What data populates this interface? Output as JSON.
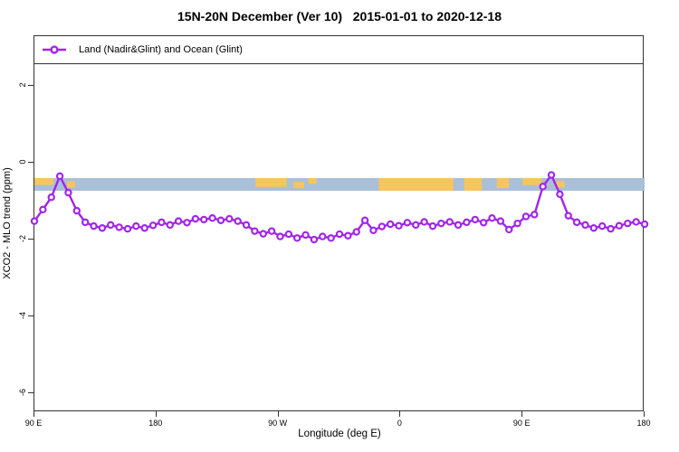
{
  "title": "15N-20N December (Ver 10)   2015-01-01 to 2020-12-18",
  "legend": {
    "label": "Land (Nadir&Glint) and Ocean (Glint)",
    "marker": "open-circle-on-line",
    "color": "#A125E8"
  },
  "axes": {
    "x": {
      "label": "Longitude (deg E)",
      "ticks": [
        {
          "deg": 0,
          "label": "90 E"
        },
        {
          "deg": 90,
          "label": "180"
        },
        {
          "deg": 180,
          "label": "90 W"
        },
        {
          "deg": 270,
          "label": "0"
        },
        {
          "deg": 360,
          "label": "90 E"
        },
        {
          "deg": 450,
          "label": "180"
        }
      ]
    },
    "y": {
      "label": "XCO2 - MLO trend (ppm)",
      "ticks": [
        {
          "value": 2,
          "label": "2"
        },
        {
          "value": 0,
          "label": "0"
        },
        {
          "value": -2,
          "label": "-2"
        },
        {
          "value": -4,
          "label": "-4"
        },
        {
          "value": -6,
          "label": "-6"
        }
      ]
    }
  },
  "chart_data": {
    "type": "line",
    "title": "15N-20N December (Ver 10)   2015-01-01 to 2020-12-18",
    "xlabel": "Longitude (deg E)",
    "ylabel": "XCO2 - MLO trend (ppm)",
    "x_axis_note": "longitude wraps: 90E eastward around globe to 180; x stored as degrees east of 90E",
    "x_deg": {
      "start": 0,
      "step": 6.25
    },
    "xlim": [
      0,
      450
    ],
    "ylim": [
      -6.49,
      3.29
    ],
    "grid": false,
    "legend_position": "top-left strip",
    "series": [
      {
        "name": "Land (Nadir&Glint) and Ocean (Glint)",
        "color": "#A125E8",
        "marker": "open-circle",
        "values": [
          -1.52,
          -1.22,
          -0.9,
          -0.35,
          -0.78,
          -1.25,
          -1.55,
          -1.65,
          -1.7,
          -1.62,
          -1.68,
          -1.72,
          -1.65,
          -1.7,
          -1.63,
          -1.55,
          -1.62,
          -1.52,
          -1.56,
          -1.46,
          -1.48,
          -1.44,
          -1.5,
          -1.46,
          -1.52,
          -1.62,
          -1.78,
          -1.85,
          -1.78,
          -1.92,
          -1.86,
          -1.96,
          -1.88,
          -2.0,
          -1.92,
          -1.96,
          -1.86,
          -1.9,
          -1.8,
          -1.5,
          -1.76,
          -1.66,
          -1.6,
          -1.64,
          -1.56,
          -1.62,
          -1.54,
          -1.65,
          -1.58,
          -1.54,
          -1.62,
          -1.55,
          -1.48,
          -1.56,
          -1.44,
          -1.52,
          -1.74,
          -1.58,
          -1.4,
          -1.35,
          -0.62,
          -0.32,
          -0.82,
          -1.38,
          -1.55,
          -1.62,
          -1.7,
          -1.65,
          -1.72,
          -1.64,
          -1.58,
          -1.54,
          -1.6
        ]
      }
    ],
    "surface_type_band": {
      "description": "strip showing surface type along the latitude band",
      "y_top": -0.4,
      "y_bottom": -0.73,
      "ocean_color": "#AABFD8",
      "land_color": "#F6C55F",
      "land_segments_deg": [
        {
          "start": 0,
          "end": 14,
          "height_frac": 0.55,
          "top_frac": 0
        },
        {
          "start": 24,
          "end": 30,
          "height_frac": 0.5,
          "top_frac": 0.25
        },
        {
          "start": 163,
          "end": 186,
          "height_frac": 0.7,
          "top_frac": 0
        },
        {
          "start": 191,
          "end": 199,
          "height_frac": 0.5,
          "top_frac": 0.3
        },
        {
          "start": 202,
          "end": 208,
          "height_frac": 0.45,
          "top_frac": 0
        },
        {
          "start": 254,
          "end": 309,
          "height_frac": 1.0,
          "top_frac": 0
        },
        {
          "start": 317,
          "end": 330,
          "height_frac": 1.0,
          "top_frac": 0
        },
        {
          "start": 341,
          "end": 350,
          "height_frac": 0.8,
          "top_frac": 0
        },
        {
          "start": 360,
          "end": 374,
          "height_frac": 0.55,
          "top_frac": 0
        },
        {
          "start": 384,
          "end": 391,
          "height_frac": 0.5,
          "top_frac": 0.25
        }
      ]
    }
  }
}
